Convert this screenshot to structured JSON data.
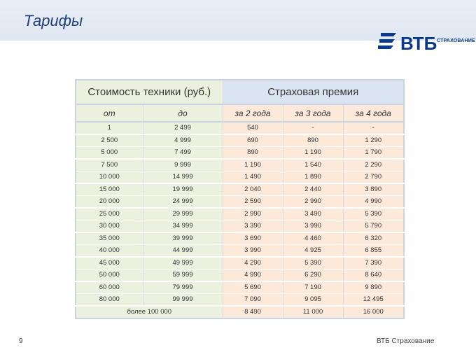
{
  "slide": {
    "title": "Тарифы",
    "page_number": "9",
    "footer_brand": "ВТБ Страхование"
  },
  "logo": {
    "wordmark": "ВТБ",
    "subtitle": "СТРАХОВАНИЕ",
    "brand_color": "#0b3a8c"
  },
  "table": {
    "header_cost": "Стоимость техники (руб.)",
    "header_premium": "Страховая премия",
    "sub_from": "от",
    "sub_to": "до",
    "sub_2y": "за 2 года",
    "sub_3y": "за 3 года",
    "sub_4y": "за 4 года",
    "colors": {
      "green": "#ebf1de",
      "peach": "#fde9d9",
      "blue": "#dbe5f1"
    },
    "rows": [
      {
        "from": "1",
        "to": "2 499",
        "y2": "540",
        "y3": "-",
        "y4": "-"
      },
      {
        "from": "2 500",
        "to": "4 999",
        "y2": "690",
        "y3": "890",
        "y4": "1 290"
      },
      {
        "from": "5 000",
        "to": "7 499",
        "y2": "890",
        "y3": "1 190",
        "y4": "1 790"
      },
      {
        "from": "7 500",
        "to": "9 999",
        "y2": "1 190",
        "y3": "1 540",
        "y4": "2 290"
      },
      {
        "from": "10 000",
        "to": "14 999",
        "y2": "1 490",
        "y3": "1 890",
        "y4": "2 790"
      },
      {
        "from": "15 000",
        "to": "19 999",
        "y2": "2 040",
        "y3": "2 440",
        "y4": "3 890"
      },
      {
        "from": "20 000",
        "to": "24 999",
        "y2": "2 590",
        "y3": "2 990",
        "y4": "4 990"
      },
      {
        "from": "25 000",
        "to": "29 999",
        "y2": "2 990",
        "y3": "3 490",
        "y4": "5 390"
      },
      {
        "from": "30 000",
        "to": "34 999",
        "y2": "3 390",
        "y3": "3 990",
        "y4": "5 790"
      },
      {
        "from": "35 000",
        "to": "39 999",
        "y2": "3 690",
        "y3": "4 460",
        "y4": "6 320"
      },
      {
        "from": "40 000",
        "to": "44 999",
        "y2": "3 990",
        "y3": "4 925",
        "y4": "6 855"
      },
      {
        "from": "45 000",
        "to": "49 999",
        "y2": "4 290",
        "y3": "5 390",
        "y4": "7 390"
      },
      {
        "from": "50 000",
        "to": "59 999",
        "y2": "4 990",
        "y3": "6 290",
        "y4": "8 640"
      },
      {
        "from": "60 000",
        "to": "79 999",
        "y2": "5 690",
        "y3": "7 190",
        "y4": "9 890"
      },
      {
        "from": "80 000",
        "to": "99 999",
        "y2": "7 090",
        "y3": "9 095",
        "y4": "12 495"
      }
    ],
    "last_row": {
      "label": "более 100 000",
      "y2": "8 490",
      "y3": "11 000",
      "y4": "16 000"
    }
  }
}
